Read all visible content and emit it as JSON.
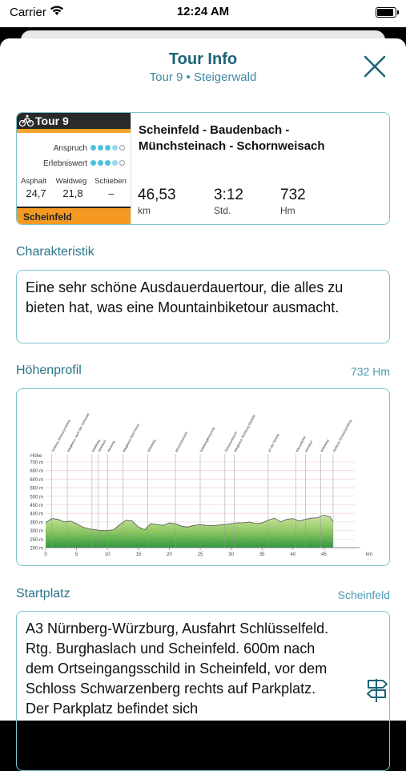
{
  "status": {
    "carrier": "Carrier",
    "time": "12:24 AM"
  },
  "header": {
    "title": "Tour Info",
    "subtitle": "Tour 9 • Steigerwald"
  },
  "tour": {
    "badge_label": "Tour 9",
    "anspruch_label": "Anspruch",
    "anspruch_level": 4,
    "erlebniswert_label": "Erlebniswert",
    "erlebniswert_level": 4,
    "dots_total": 5,
    "asphalt_label": "Asphalt",
    "waldweg_label": "Waldweg",
    "schieben_label": "Schieben",
    "asphalt_value": "24,7",
    "waldweg_value": "21,8",
    "schieben_value": "–",
    "start_label": "Scheinfeld",
    "route": "Scheinfeld - Baudenbach - Münchsteinach - Schornweisach",
    "distance": "46,53",
    "distance_unit": "km",
    "duration": "3:12",
    "duration_unit": "Std.",
    "elevation": "732",
    "elevation_unit": "Hm"
  },
  "charakteristik": {
    "heading": "Charakteristik",
    "text": "Eine sehr schöne Ausdauerdauertour, die alles zu bieten hat, was eine Mountainbiketour ausmacht."
  },
  "hoehenprofil": {
    "heading": "Höhenprofil",
    "value": "732 Hm",
    "chart_data": {
      "type": "area",
      "ylabel": "Höhe",
      "xlabel": "km",
      "xlim": [
        0,
        50
      ],
      "ylim": [
        200,
        700
      ],
      "y_ticks": [
        "200 m",
        "250 m",
        "300 m",
        "350 m",
        "400 m",
        "450 m",
        "500 m",
        "550 m",
        "600 m",
        "650 m",
        "700 m"
      ],
      "x_ticks": [
        "0",
        "5",
        "10",
        "15",
        "20",
        "25",
        "30",
        "35",
        "40",
        "45"
      ],
      "x": [
        0,
        1,
        2,
        3,
        4,
        5,
        6,
        7,
        8,
        9,
        10,
        11,
        12,
        13,
        14,
        15,
        16,
        17,
        18,
        19,
        20,
        21,
        22,
        23,
        24,
        25,
        26,
        27,
        28,
        29,
        30,
        31,
        32,
        33,
        34,
        35,
        36,
        37,
        38,
        39,
        40,
        41,
        42,
        43,
        44,
        45,
        46,
        46.5
      ],
      "y": [
        345,
        370,
        365,
        350,
        355,
        340,
        320,
        310,
        305,
        300,
        300,
        305,
        335,
        360,
        355,
        320,
        305,
        340,
        335,
        330,
        345,
        340,
        325,
        320,
        330,
        335,
        330,
        328,
        332,
        335,
        340,
        345,
        345,
        350,
        340,
        345,
        360,
        372,
        350,
        365,
        370,
        355,
        365,
        372,
        375,
        390,
        380,
        350
      ],
      "waypoints": [
        {
          "km": 1,
          "label": "Schloss Schwarzenberg"
        },
        {
          "km": 3.5,
          "label": "Wegkreuz nach der Schwabe"
        },
        {
          "km": 7.5,
          "label": "Waldweg"
        },
        {
          "km": 8.5,
          "label": "Seehaus"
        },
        {
          "km": 10,
          "label": "Heuweg"
        },
        {
          "km": 12.5,
          "label": "Wegkreuz Bad Kreuz"
        },
        {
          "km": 16.5,
          "label": "Waldweg"
        },
        {
          "km": 21,
          "label": "Münchsteinach"
        },
        {
          "km": 25,
          "label": "Waldwegkreuzung"
        },
        {
          "km": 29,
          "label": "Schornweisach"
        },
        {
          "km": 30.5,
          "label": "Wegkreuz Richtung Dietfeld"
        },
        {
          "km": 36,
          "label": "an der Straße"
        },
        {
          "km": 40.5,
          "label": "Wenzellohe"
        },
        {
          "km": 42,
          "label": "Kirchhof"
        },
        {
          "km": 44.5,
          "label": "Waldweg"
        },
        {
          "km": 46.5,
          "label": "Schloss Schwarzenberg"
        }
      ]
    }
  },
  "startplatz": {
    "heading": "Startplatz",
    "value": "Scheinfeld",
    "text": "A3 Nürnberg-Würzburg, Ausfahrt Schlüsselfeld. Rtg. Burghaslach und Scheinfeld. 600m nach dem Ortseingangsschild in Scheinfeld, vor dem Schloss Schwarzenberg rechts auf Parkplatz. Der Parkplatz befindet sich"
  },
  "colors": {
    "accent": "#2a7488",
    "border": "#7ec4d0",
    "badge_orange": "#f49a22"
  }
}
